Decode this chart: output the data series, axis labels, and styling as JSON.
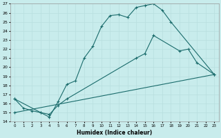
{
  "xlabel": "Humidex (Indice chaleur)",
  "bg_color": "#c8ecec",
  "line_color": "#1a6b6b",
  "grid_color": "#b8dede",
  "xlim": [
    -0.5,
    23.5
  ],
  "ylim": [
    14,
    27
  ],
  "xticks": [
    0,
    1,
    2,
    3,
    4,
    5,
    6,
    7,
    8,
    9,
    10,
    11,
    12,
    13,
    14,
    15,
    16,
    17,
    18,
    19,
    20,
    21,
    22,
    23
  ],
  "yticks": [
    14,
    15,
    16,
    17,
    18,
    19,
    20,
    21,
    22,
    23,
    24,
    25,
    26,
    27
  ],
  "line1_x": [
    0,
    1,
    2,
    3,
    4,
    5,
    6,
    7,
    8,
    9,
    10,
    11,
    12,
    13,
    14,
    15,
    16,
    17,
    18,
    23
  ],
  "line1_y": [
    16.5,
    15.5,
    15.2,
    15.0,
    14.5,
    16.2,
    18.1,
    18.5,
    21.0,
    22.3,
    24.5,
    25.7,
    25.8,
    25.5,
    26.6,
    26.8,
    27.0,
    26.3,
    25.0,
    19.2
  ],
  "line2_x": [
    0,
    3,
    4,
    5,
    6,
    14,
    15,
    16,
    19,
    20,
    21,
    23
  ],
  "line2_y": [
    16.5,
    15.0,
    14.8,
    15.8,
    16.5,
    21.0,
    21.5,
    23.5,
    21.8,
    22.0,
    20.5,
    19.2
  ],
  "line3_x": [
    0,
    23
  ],
  "line3_y": [
    15.0,
    19.2
  ],
  "marker": "+"
}
